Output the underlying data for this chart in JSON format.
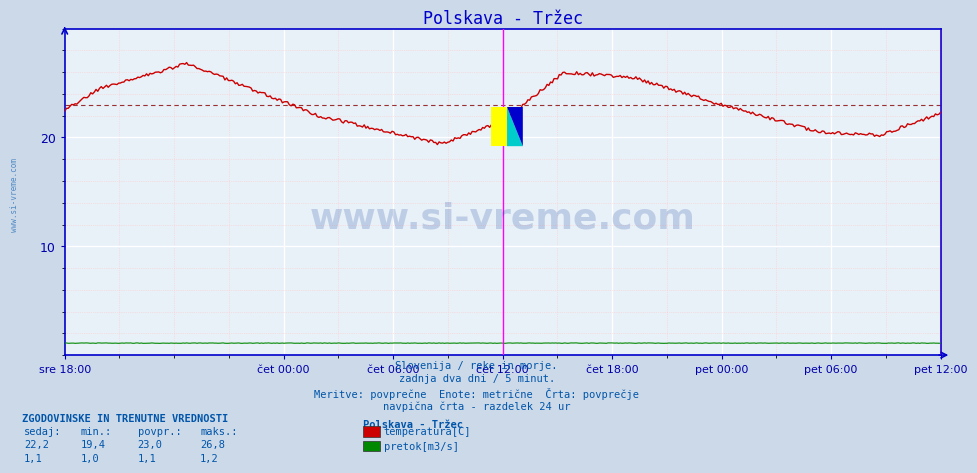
{
  "title": "Polskava - Tržec",
  "title_color": "#0000cc",
  "bg_color": "#ccd9e8",
  "plot_bg_color": "#e8f0f8",
  "grid_color": "#ffffff",
  "grid_minor_color": "#ffcccc",
  "axis_color": "#0000cc",
  "tick_color": "#0000aa",
  "temp_color": "#cc0000",
  "flow_color": "#008800",
  "avg_line_color": "#880000",
  "vline_color": "#ff00ff",
  "ylim": [
    0,
    30
  ],
  "yticks": [
    10,
    20
  ],
  "xlabel_color": "#0000aa",
  "text_color": "#0055aa",
  "temp_avg": 23.0,
  "temp_min": 19.4,
  "temp_max": 26.8,
  "temp_current": 22.2,
  "flow_avg": 1.1,
  "flow_min": 1.0,
  "flow_max": 1.2,
  "flow_current": 1.1,
  "x_tick_labels": [
    "sre 18:00",
    "čet 00:00",
    "čet 06:00",
    "čet 12:00",
    "čet 18:00",
    "pet 00:00",
    "pet 06:00",
    "pet 12:00"
  ],
  "x_tick_positions": [
    0.0,
    0.25,
    0.375,
    0.5,
    0.625,
    0.75,
    0.875,
    1.0
  ],
  "vline_positions": [
    0.5,
    1.0
  ],
  "footer_lines": [
    "Slovenija / reke in morje.",
    "zadnja dva dni / 5 minut.",
    "Meritve: povprečne  Enote: metrične  Črta: povprečje",
    "navpična črta - razdelek 24 ur"
  ],
  "legend_title": "Polskava - Tržec",
  "legend_items": [
    "temperatura[C]",
    "pretok[m3/s]"
  ],
  "legend_colors": [
    "#cc0000",
    "#008800"
  ],
  "stats_header": "ZGODOVINSKE IN TRENUTNE VREDNOSTI",
  "stats_cols": [
    "sedaj:",
    "min.:",
    "povpr.:",
    "maks.:"
  ],
  "stats_row1": [
    "22,2",
    "19,4",
    "23,0",
    "26,8"
  ],
  "stats_row2": [
    "1,1",
    "1,0",
    "1,1",
    "1,2"
  ],
  "watermark": "www.si-vreme.com",
  "watermark_color": "#003399",
  "watermark_alpha": 0.18
}
